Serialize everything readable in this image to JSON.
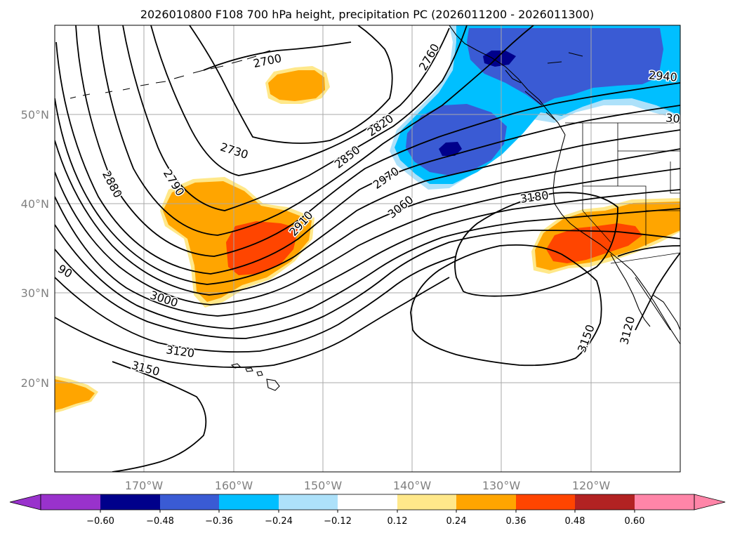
{
  "map": {
    "title": "2026010800 F108 700 hPa height, precipitation PC (2026011200 - 2026011300)",
    "latitude_labels": [
      "50°N",
      "40°N",
      "30°N",
      "20°N"
    ],
    "longitude_labels": [
      "170°W",
      "160°W",
      "150°W",
      "140°W",
      "130°W",
      "120°W"
    ],
    "gridlines": true,
    "colors": {
      "neg_060": "#9932CC",
      "neg_048": "#00008B",
      "neg_036": "#3A5BD4",
      "neg_024": "#00BFFF",
      "neg_012": "#ADE1FA",
      "zero": "#FFFFFF",
      "pos_012": "#FFE88A",
      "pos_024": "#FFA500",
      "pos_036": "#FF4500",
      "pos_048": "#B22222",
      "pos_060": "#FF85A8"
    }
  },
  "contour_labels": [
    {
      "id": "h2700",
      "text": "2700"
    },
    {
      "id": "h2760",
      "text": "2760"
    },
    {
      "id": "h2730",
      "text": "2730"
    },
    {
      "id": "h2820",
      "text": "2820"
    },
    {
      "id": "h2850",
      "text": "2850"
    },
    {
      "id": "h2880",
      "text": "2880"
    },
    {
      "id": "h2790",
      "text": "2790"
    },
    {
      "id": "h2970",
      "text": "2970"
    },
    {
      "id": "h2910",
      "text": "2910"
    },
    {
      "id": "h3060",
      "text": "3060"
    },
    {
      "id": "h3180",
      "text": "3180"
    },
    {
      "id": "h2940",
      "text": "2940"
    },
    {
      "id": "h30",
      "text": "30"
    },
    {
      "id": "h90",
      "text": "90"
    },
    {
      "id": "h3000",
      "text": "3000"
    },
    {
      "id": "h3120a",
      "text": "3120"
    },
    {
      "id": "h3150a",
      "text": "3150"
    },
    {
      "id": "h3150b",
      "text": "3150"
    },
    {
      "id": "h3120b",
      "text": "3120"
    }
  ],
  "colorbar": {
    "ticks": [
      "−0.60",
      "−0.48",
      "−0.36",
      "−0.24",
      "−0.12",
      "0.12",
      "0.24",
      "0.36",
      "0.48",
      "0.60"
    ]
  }
}
